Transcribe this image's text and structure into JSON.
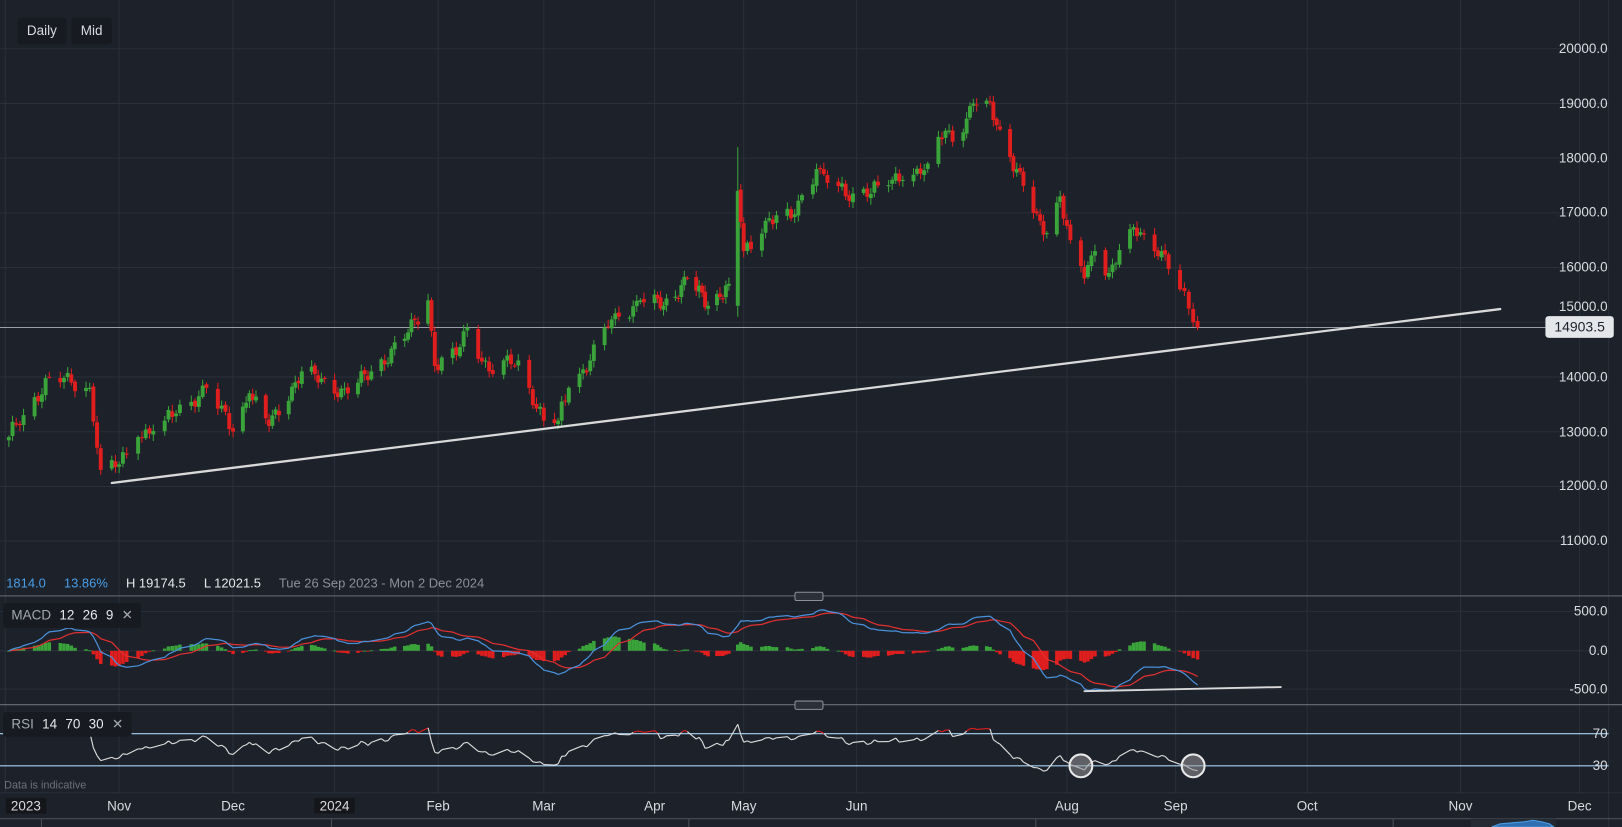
{
  "toolbar": {
    "interval": "Daily",
    "price_type": "Mid"
  },
  "info": {
    "change": "1814.0",
    "change_pct": "13.86%",
    "high": "H 19174.5",
    "low": "L 12021.5",
    "range": "Tue 26 Sep 2023 - Mon 2 Dec 2024"
  },
  "price_axis": {
    "ticks": [
      "20000.0",
      "19000.0",
      "18000.0",
      "17000.0",
      "16000.0",
      "15000.0",
      "14000.0",
      "13000.0",
      "12000.0",
      "11000.0"
    ],
    "current": "14903.5"
  },
  "macd": {
    "label": "MACD",
    "fast": "12",
    "slow": "26",
    "signal": "9",
    "ticks": [
      "500.0",
      "0.0",
      "-500.0"
    ]
  },
  "rsi": {
    "label": "RSI",
    "period": "14",
    "upper": "70",
    "lower": "30",
    "ticks": [
      "70",
      "30"
    ]
  },
  "disclaimer": "Data is indicative",
  "time_axis": [
    {
      "label": "2023",
      "year": true,
      "date": "2023-10-01"
    },
    {
      "label": "Nov",
      "date": "2023-11-01"
    },
    {
      "label": "Dec",
      "date": "2023-12-01"
    },
    {
      "label": "2024",
      "year": true,
      "date": "2024-01-01"
    },
    {
      "label": "Feb",
      "date": "2024-02-01"
    },
    {
      "label": "Mar",
      "date": "2024-03-01"
    },
    {
      "label": "Apr",
      "date": "2024-04-01"
    },
    {
      "label": "May",
      "date": "2024-05-01"
    },
    {
      "label": "Jun",
      "date": "2024-06-01"
    },
    {
      "label": "Aug",
      "date": "2024-08-01"
    },
    {
      "label": "Sep",
      "date": "2024-09-01"
    },
    {
      "label": "Oct",
      "date": "2024-10-01"
    },
    {
      "label": "Nov",
      "date": "2024-11-01"
    },
    {
      "label": "Dec",
      "date": "2024-12-01"
    }
  ],
  "colors": {
    "background": "#1c212a",
    "grid": "#2a303a",
    "up": "#3aa33a",
    "down": "#e01e1e",
    "macd_line": "#4a90d9",
    "signal_line": "#e03030",
    "rsi_line": "#dcdcdc",
    "rsi_bands": "#a8d4f5",
    "trendline": "#d9d9d9",
    "accent": "#4a9ee8"
  },
  "chart_data": {
    "type": "candlestick",
    "interval": "daily",
    "ylim": [
      10300,
      20400
    ],
    "current_price": 14903.5,
    "close_path": [
      [
        "2023-10-02",
        12900
      ],
      [
        "2023-10-06",
        13300
      ],
      [
        "2023-10-13",
        14000
      ],
      [
        "2023-10-24",
        13800
      ],
      [
        "2023-10-27",
        12300
      ],
      [
        "2023-11-01",
        12400
      ],
      [
        "2023-11-06",
        12900
      ],
      [
        "2023-11-13",
        13200
      ],
      [
        "2023-11-24",
        13800
      ],
      [
        "2023-12-01",
        13000
      ],
      [
        "2023-12-06",
        13700
      ],
      [
        "2023-12-12",
        13100
      ],
      [
        "2023-12-22",
        14100
      ],
      [
        "2024-01-05",
        13700
      ],
      [
        "2024-01-12",
        14100
      ],
      [
        "2024-01-22",
        14700
      ],
      [
        "2024-01-29",
        15400
      ],
      [
        "2024-01-31",
        14200
      ],
      [
        "2024-02-06",
        14400
      ],
      [
        "2024-02-09",
        14900
      ],
      [
        "2024-02-15",
        14100
      ],
      [
        "2024-02-23",
        14300
      ],
      [
        "2024-02-26",
        13800
      ],
      [
        "2024-03-01",
        13200
      ],
      [
        "2024-03-05",
        13200
      ],
      [
        "2024-03-08",
        13800
      ],
      [
        "2024-03-14",
        14300
      ],
      [
        "2024-03-18",
        14900
      ],
      [
        "2024-03-22",
        15100
      ],
      [
        "2024-03-28",
        15400
      ],
      [
        "2024-04-04",
        15300
      ],
      [
        "2024-04-12",
        15800
      ],
      [
        "2024-04-19",
        15300
      ],
      [
        "2024-04-26",
        15700
      ],
      [
        "2024-04-29",
        17400
      ],
      [
        "2024-05-01",
        16300
      ],
      [
        "2024-05-08",
        16900
      ],
      [
        "2024-05-14",
        16900
      ],
      [
        "2024-05-21",
        17800
      ],
      [
        "2024-05-29",
        17300
      ],
      [
        "2024-06-07",
        17500
      ],
      [
        "2024-06-14",
        17600
      ],
      [
        "2024-06-21",
        17900
      ],
      [
        "2024-06-26",
        18500
      ],
      [
        "2024-06-28",
        18300
      ],
      [
        "2024-07-04",
        19000
      ],
      [
        "2024-07-08",
        19050
      ],
      [
        "2024-07-11",
        18600
      ],
      [
        "2024-07-17",
        17800
      ],
      [
        "2024-07-22",
        17000
      ],
      [
        "2024-07-25",
        16600
      ],
      [
        "2024-07-30",
        17300
      ],
      [
        "2024-08-02",
        16500
      ],
      [
        "2024-08-06",
        15800
      ],
      [
        "2024-08-09",
        16300
      ],
      [
        "2024-08-13",
        15900
      ],
      [
        "2024-08-19",
        16700
      ],
      [
        "2024-08-23",
        16600
      ],
      [
        "2024-08-28",
        16300
      ],
      [
        "2024-09-02",
        15600
      ],
      [
        "2024-09-05",
        15000
      ],
      [
        "2024-09-06",
        14903.5
      ]
    ],
    "spike_high": {
      "date": "2024-04-29",
      "high": 18200
    },
    "trendlines": [
      {
        "pane": "price",
        "from": [
          "2023-10-30",
          12060
        ],
        "to": [
          "2024-11-11",
          15240
        ]
      },
      {
        "pane": "macd",
        "from": [
          "2024-08-06",
          -513
        ],
        "to": [
          "2024-09-25",
          -460
        ]
      }
    ],
    "rsi_markers": [
      [
        "2024-08-05",
        30
      ],
      [
        "2024-09-05",
        30
      ]
    ]
  }
}
